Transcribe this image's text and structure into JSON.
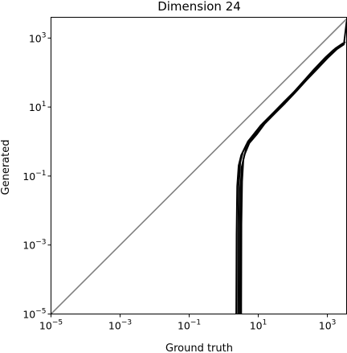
{
  "chart_data": {
    "type": "line",
    "title": "Dimension 24",
    "xlabel": "Ground truth",
    "ylabel": "Generated",
    "xscale": "log",
    "yscale": "log",
    "xlim": [
      1e-05,
      3600
    ],
    "ylim": [
      1e-05,
      4000
    ],
    "xticks": [
      {
        "base": "10",
        "exp": "−5",
        "value": 1e-05
      },
      {
        "base": "10",
        "exp": "−3",
        "value": 0.001
      },
      {
        "base": "10",
        "exp": "−1",
        "value": 0.1
      },
      {
        "base": "10",
        "exp": "1",
        "value": 10
      },
      {
        "base": "10",
        "exp": "3",
        "value": 1000
      }
    ],
    "yticks": [
      {
        "base": "10",
        "exp": "−5",
        "value": 1e-05
      },
      {
        "base": "10",
        "exp": "−3",
        "value": 0.001
      },
      {
        "base": "10",
        "exp": "−1",
        "value": 0.1
      },
      {
        "base": "10",
        "exp": "1",
        "value": 10
      },
      {
        "base": "10",
        "exp": "3",
        "value": 1000
      }
    ],
    "grid": false,
    "reference_line": {
      "color": "#808080",
      "x": [
        1e-05,
        3600
      ],
      "y": [
        1e-05,
        3600
      ]
    },
    "series_color": "#000000",
    "series": [
      {
        "x": [
          2.3,
          2.35,
          2.45,
          2.7,
          3.2,
          4.5,
          7,
          12,
          25,
          50,
          100,
          200,
          400,
          800,
          1500,
          2500
        ],
        "y": [
          1e-05,
          0.002,
          0.05,
          0.2,
          0.4,
          0.8,
          1.5,
          3,
          6,
          12,
          25,
          55,
          120,
          250,
          450,
          600
        ]
      },
      {
        "x": [
          2.6,
          2.65,
          2.75,
          3.0,
          3.6,
          5.0,
          8,
          14,
          28,
          55,
          110,
          220,
          450,
          900,
          1700,
          2800
        ],
        "y": [
          1e-05,
          0.003,
          0.06,
          0.25,
          0.5,
          1.0,
          1.8,
          3.5,
          7,
          14,
          28,
          60,
          130,
          280,
          500,
          700
        ]
      },
      {
        "x": [
          2.9,
          2.95,
          3.05,
          3.3,
          4.0,
          5.5,
          9,
          15,
          30,
          60,
          120,
          240,
          500,
          1000,
          1900,
          3000,
          3600
        ],
        "y": [
          1e-05,
          0.002,
          0.04,
          0.18,
          0.42,
          0.9,
          1.6,
          3.2,
          6.5,
          13,
          27,
          58,
          125,
          260,
          480,
          650,
          3000
        ]
      },
      {
        "x": [
          3.2,
          3.25,
          3.4,
          3.7,
          4.4,
          6.0,
          10,
          17,
          33,
          65,
          130,
          260,
          550,
          1100,
          2000,
          3200
        ],
        "y": [
          1e-05,
          0.004,
          0.07,
          0.3,
          0.6,
          1.1,
          2.0,
          3.8,
          7.5,
          15,
          30,
          65,
          140,
          300,
          520,
          750
        ]
      }
    ]
  }
}
